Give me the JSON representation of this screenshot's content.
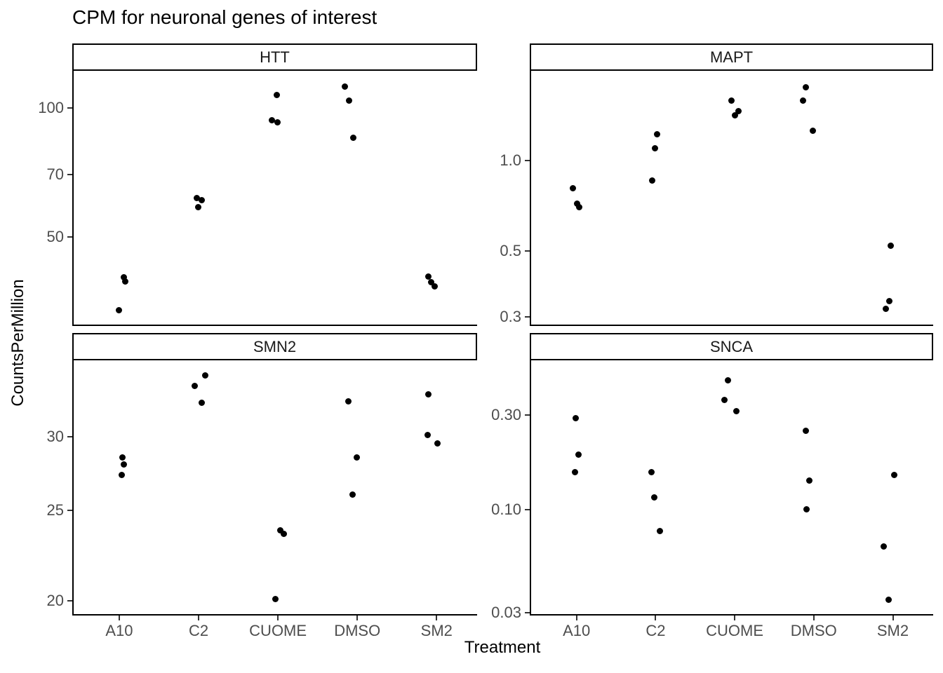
{
  "title": "CPM for neuronal genes of interest",
  "x_axis_label": "Treatment",
  "y_axis_label": "CountsPerMillion",
  "colors": {
    "point": "#000000",
    "axis_text": "#4d4d4d",
    "text": "#000000",
    "panel_border": "#000000",
    "background": "#ffffff"
  },
  "chart_data": {
    "type": "scatter",
    "facet_variable": "gene",
    "x_variable": "Treatment",
    "y_variable": "CountsPerMillion",
    "y_scale": "log10",
    "grid": false,
    "legend": "none",
    "x_categories": [
      "A10",
      "C2",
      "CUOME",
      "DMSO",
      "SM2"
    ],
    "facets": [
      {
        "gene": "HTT",
        "ylim": [
          31,
          122
        ],
        "yticks": [
          {
            "value": 100,
            "label": "100"
          },
          {
            "value": 70,
            "label": "70"
          },
          {
            "value": 50,
            "label": "50"
          }
        ],
        "points": [
          {
            "treatment": "A10",
            "value": 40.3,
            "dx": 5
          },
          {
            "treatment": "A10",
            "value": 39.3,
            "dx": 7
          },
          {
            "treatment": "A10",
            "value": 33.7,
            "dx": -2
          },
          {
            "treatment": "C2",
            "value": 61.5,
            "dx": -5
          },
          {
            "treatment": "C2",
            "value": 61.0,
            "dx": 2
          },
          {
            "treatment": "C2",
            "value": 58.6,
            "dx": -3
          },
          {
            "treatment": "CUOME",
            "value": 107,
            "dx": -4
          },
          {
            "treatment": "CUOME",
            "value": 93.5,
            "dx": -11
          },
          {
            "treatment": "CUOME",
            "value": 92.5,
            "dx": -3
          },
          {
            "treatment": "DMSO",
            "value": 112,
            "dx": -20
          },
          {
            "treatment": "DMSO",
            "value": 104,
            "dx": -14
          },
          {
            "treatment": "DMSO",
            "value": 85.3,
            "dx": -8
          },
          {
            "treatment": "SM2",
            "value": 40.4,
            "dx": -14
          },
          {
            "treatment": "SM2",
            "value": 39.2,
            "dx": -10
          },
          {
            "treatment": "SM2",
            "value": 38.4,
            "dx": -5
          }
        ]
      },
      {
        "gene": "MAPT",
        "ylim": [
          0.28,
          2.0
        ],
        "yticks": [
          {
            "value": 1.0,
            "label": "1.0"
          },
          {
            "value": 0.5,
            "label": "0.5"
          },
          {
            "value": 0.3,
            "label": "0.3"
          }
        ],
        "points": [
          {
            "treatment": "A10",
            "value": 0.81,
            "dx": -7
          },
          {
            "treatment": "A10",
            "value": 0.72,
            "dx": -1
          },
          {
            "treatment": "A10",
            "value": 0.7,
            "dx": 2
          },
          {
            "treatment": "C2",
            "value": 1.23,
            "dx": 0
          },
          {
            "treatment": "C2",
            "value": 1.1,
            "dx": -3
          },
          {
            "treatment": "C2",
            "value": 0.86,
            "dx": -7
          },
          {
            "treatment": "CUOME",
            "value": 1.59,
            "dx": -7
          },
          {
            "treatment": "CUOME",
            "value": 1.47,
            "dx": 3
          },
          {
            "treatment": "CUOME",
            "value": 1.42,
            "dx": -2
          },
          {
            "treatment": "DMSO",
            "value": 1.76,
            "dx": -13
          },
          {
            "treatment": "DMSO",
            "value": 1.59,
            "dx": -17
          },
          {
            "treatment": "DMSO",
            "value": 1.26,
            "dx": -3
          },
          {
            "treatment": "SM2",
            "value": 0.52,
            "dx": -5
          },
          {
            "treatment": "SM2",
            "value": 0.34,
            "dx": -7
          },
          {
            "treatment": "SM2",
            "value": 0.32,
            "dx": -12
          }
        ]
      },
      {
        "gene": "SMN2",
        "ylim": [
          19.3,
          36.2
        ],
        "yticks": [
          {
            "value": 30,
            "label": "30"
          },
          {
            "value": 25,
            "label": "25"
          },
          {
            "value": 20,
            "label": "20"
          }
        ],
        "points": [
          {
            "treatment": "A10",
            "value": 28.5,
            "dx": 3
          },
          {
            "treatment": "A10",
            "value": 28.0,
            "dx": 5
          },
          {
            "treatment": "A10",
            "value": 27.3,
            "dx": 2
          },
          {
            "treatment": "C2",
            "value": 34.9,
            "dx": 7
          },
          {
            "treatment": "C2",
            "value": 34.0,
            "dx": -8
          },
          {
            "treatment": "C2",
            "value": 32.6,
            "dx": 2
          },
          {
            "treatment": "CUOME",
            "value": 23.8,
            "dx": 1
          },
          {
            "treatment": "CUOME",
            "value": 23.6,
            "dx": 6
          },
          {
            "treatment": "CUOME",
            "value": 20.1,
            "dx": -6
          },
          {
            "treatment": "DMSO",
            "value": 32.7,
            "dx": -15
          },
          {
            "treatment": "DMSO",
            "value": 28.5,
            "dx": -3
          },
          {
            "treatment": "DMSO",
            "value": 26.0,
            "dx": -9
          },
          {
            "treatment": "SM2",
            "value": 33.3,
            "dx": -14
          },
          {
            "treatment": "SM2",
            "value": 30.1,
            "dx": -15
          },
          {
            "treatment": "SM2",
            "value": 29.5,
            "dx": -1
          }
        ]
      },
      {
        "gene": "SNCA",
        "ylim": [
          0.029,
          0.57
        ],
        "yticks": [
          {
            "value": 0.3,
            "label": "0.30"
          },
          {
            "value": 0.1,
            "label": "0.10"
          },
          {
            "value": 0.03,
            "label": "0.03"
          }
        ],
        "points": [
          {
            "treatment": "A10",
            "value": 0.29,
            "dx": -3
          },
          {
            "treatment": "A10",
            "value": 0.19,
            "dx": 1
          },
          {
            "treatment": "A10",
            "value": 0.155,
            "dx": -4
          },
          {
            "treatment": "C2",
            "value": 0.155,
            "dx": -8
          },
          {
            "treatment": "C2",
            "value": 0.115,
            "dx": -4
          },
          {
            "treatment": "C2",
            "value": 0.078,
            "dx": 4
          },
          {
            "treatment": "CUOME",
            "value": 0.45,
            "dx": -12
          },
          {
            "treatment": "CUOME",
            "value": 0.36,
            "dx": -17
          },
          {
            "treatment": "CUOME",
            "value": 0.315,
            "dx": 0
          },
          {
            "treatment": "DMSO",
            "value": 0.25,
            "dx": -13
          },
          {
            "treatment": "DMSO",
            "value": 0.14,
            "dx": -8
          },
          {
            "treatment": "DMSO",
            "value": 0.1,
            "dx": -12
          },
          {
            "treatment": "SM2",
            "value": 0.15,
            "dx": 0
          },
          {
            "treatment": "SM2",
            "value": 0.065,
            "dx": -15
          },
          {
            "treatment": "SM2",
            "value": 0.035,
            "dx": -8
          }
        ]
      }
    ]
  }
}
